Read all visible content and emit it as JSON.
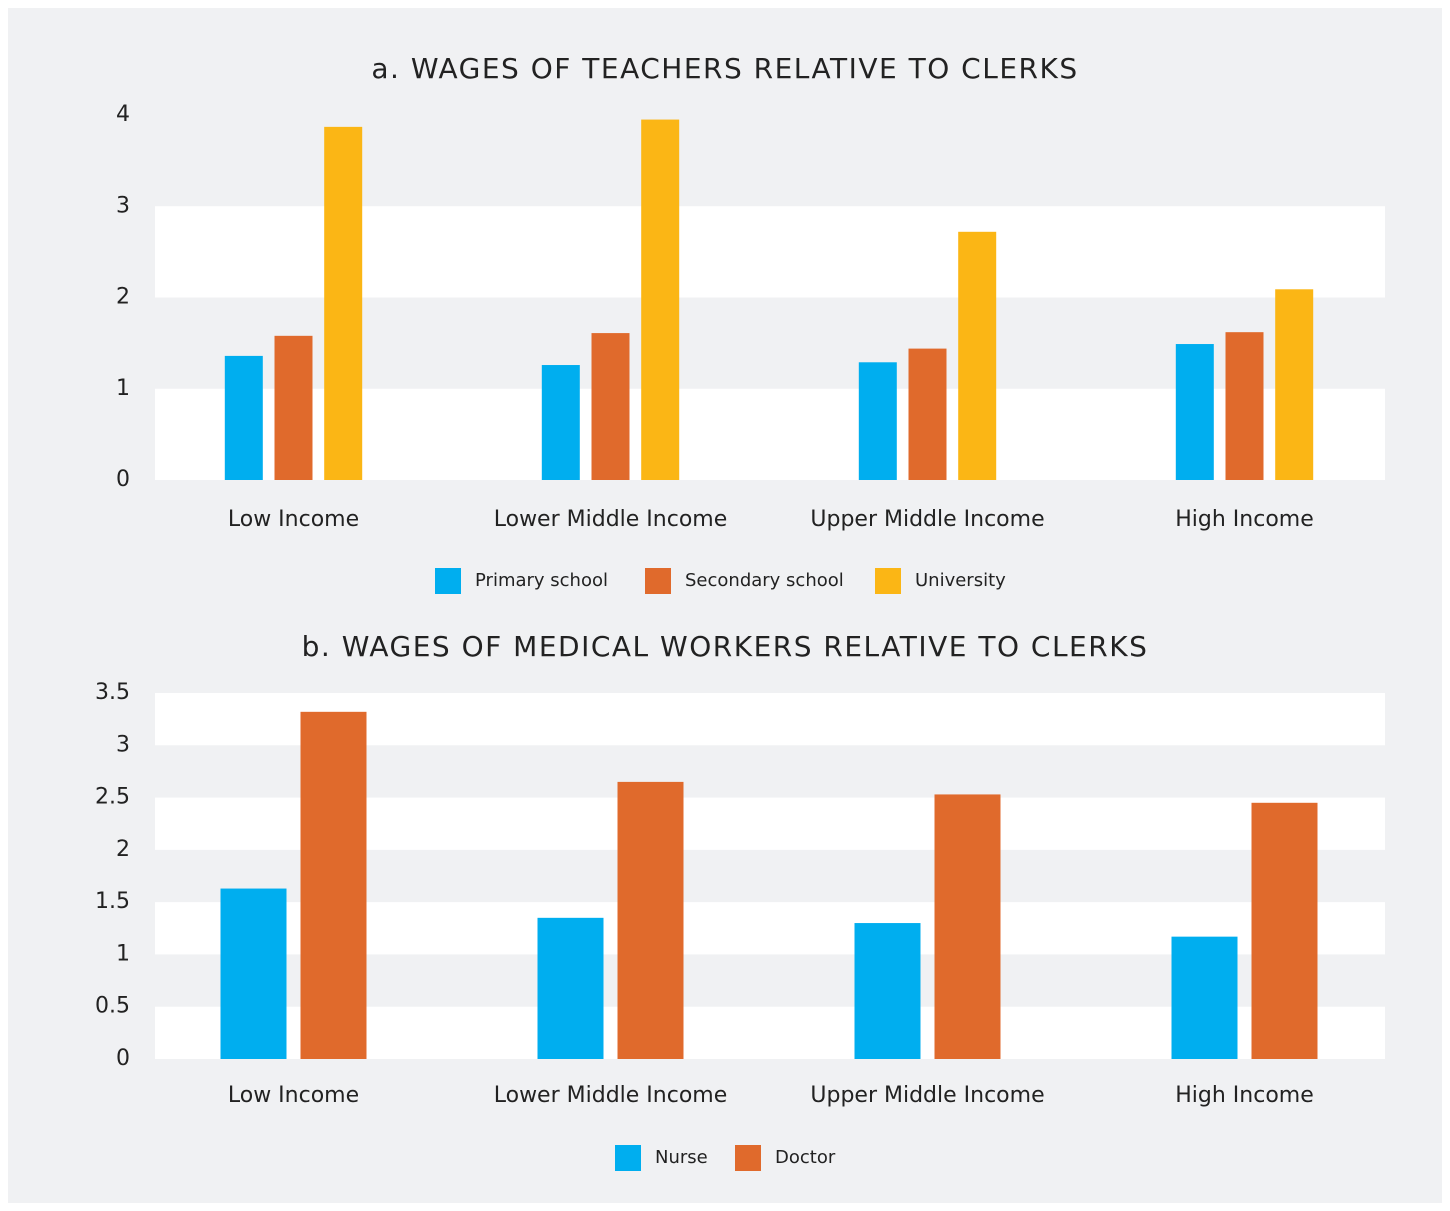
{
  "chart_data": [
    {
      "type": "bar",
      "title": "a. WAGES OF TEACHERS RELATIVE TO CLERKS",
      "categories": [
        "Low Income",
        "Lower Middle Income",
        "Upper Middle Income",
        "High Income"
      ],
      "series": [
        {
          "name": "Primary school",
          "color": "#00aeef",
          "values": [
            1.36,
            1.26,
            1.29,
            1.49
          ]
        },
        {
          "name": "Secondary school",
          "color": "#e06a2c",
          "values": [
            1.58,
            1.61,
            1.44,
            1.62
          ]
        },
        {
          "name": "University",
          "color": "#fbb615",
          "values": [
            3.87,
            3.95,
            2.72,
            2.09
          ]
        }
      ],
      "ylim": [
        0,
        4
      ],
      "yticks": [
        0,
        1,
        2,
        3,
        4
      ],
      "grid": true,
      "legend": "bottom"
    },
    {
      "type": "bar",
      "title": "b. WAGES OF MEDICAL WORKERS RELATIVE TO CLERKS",
      "categories": [
        "Low Income",
        "Lower Middle Income",
        "Upper Middle Income",
        "High Income"
      ],
      "series": [
        {
          "name": "Nurse",
          "color": "#00aeef",
          "values": [
            1.63,
            1.35,
            1.3,
            1.17
          ]
        },
        {
          "name": "Doctor",
          "color": "#e06a2c",
          "values": [
            3.32,
            2.65,
            2.53,
            2.45
          ]
        }
      ],
      "ylim": [
        0,
        3.5
      ],
      "yticks": [
        0,
        0.5,
        1,
        1.5,
        2,
        2.5,
        3,
        3.5
      ],
      "grid": true,
      "legend": "bottom"
    }
  ]
}
